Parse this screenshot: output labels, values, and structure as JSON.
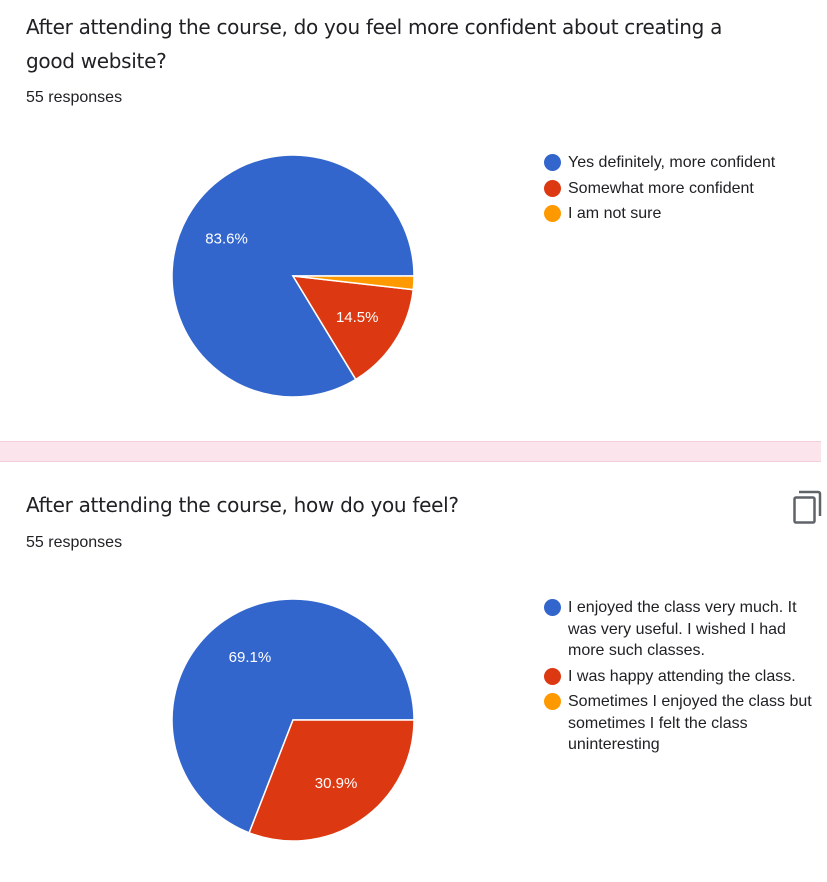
{
  "colors": {
    "blue": "#3366cc",
    "red": "#dc3912",
    "orange": "#ff9900",
    "divider": "#fce4ec"
  },
  "cards": [
    {
      "question": "After attending the course, do you feel more confident about creating a good website?",
      "responses": "55 responses",
      "chart_data": {
        "type": "pie",
        "labels": [
          "Yes definitely, more confident",
          "Somewhat more confident",
          "I am not sure"
        ],
        "values": [
          83.6,
          14.5,
          1.8
        ],
        "value_labels": [
          "83.6%",
          "14.5%",
          ""
        ],
        "colors": [
          "#3366cc",
          "#dc3912",
          "#ff9900"
        ],
        "legend_position": "right"
      }
    },
    {
      "question": "After attending the course, how do you feel?",
      "responses": "55 responses",
      "copy_icon": "copy-icon",
      "chart_data": {
        "type": "pie",
        "labels": [
          "I enjoyed the class very much. It was very useful. I wished I had more such classes.",
          "I was happy attending the class.",
          "Sometimes I enjoyed the class but sometimes I felt the class uninteresting"
        ],
        "values": [
          69.1,
          30.9,
          0
        ],
        "value_labels": [
          "69.1%",
          "30.9%",
          ""
        ],
        "colors": [
          "#3366cc",
          "#dc3912",
          "#ff9900"
        ],
        "legend_position": "right"
      }
    }
  ]
}
